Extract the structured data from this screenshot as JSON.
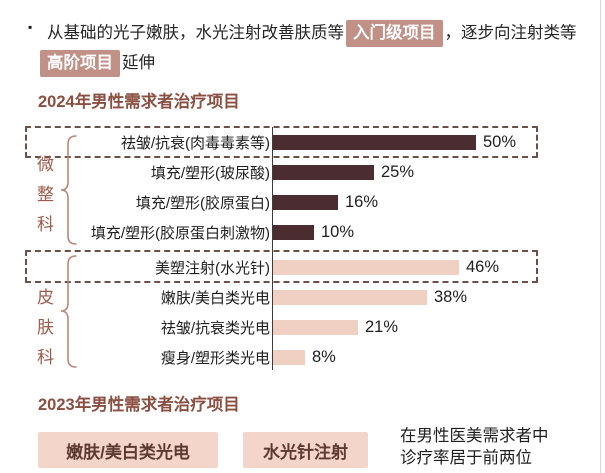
{
  "colors": {
    "dark_bar": "#4a2c31",
    "light_bar": "#f0d0c2",
    "chip_dark_bg": "#c19087",
    "chip_light_bg": "#f3d6c9",
    "title_text": "#8b4f42",
    "group_label_text": "#9e5a4a",
    "brace": "#b5897c",
    "dashed_border": "#6a5049"
  },
  "bullet": {
    "marker_glyph": "▪",
    "line1_pre": "从基础的光子嫩肤，水光注射改善肤质等",
    "chip_entry_level": "入门级项目",
    "line1_post": "，逐步向注射类等",
    "chip_advanced": "高阶项目",
    "line2_post": "延伸"
  },
  "section_2024": {
    "title": "2024年男性需求者治疗项目"
  },
  "section_2023": {
    "title": "2023年男性需求者治疗项目",
    "chips": [
      "嫩肤/美白类光电",
      "水光针注射"
    ],
    "note_line1": "在男性医美需求者中",
    "note_line2": "诊疗率居于前两位"
  },
  "chart_data": {
    "type": "bar",
    "orientation": "horizontal",
    "title": "2024年男性需求者治疗项目",
    "unit": "%",
    "xlim": [
      0,
      55
    ],
    "value_axis_visible": false,
    "grid": false,
    "legend": false,
    "groups": [
      {
        "name": "微整科",
        "row_indexes": [
          0,
          1,
          2,
          3
        ]
      },
      {
        "name": "皮肤科",
        "row_indexes": [
          4,
          5,
          6,
          7
        ]
      }
    ],
    "rows": [
      {
        "group": "微整科",
        "label": "祛皱/抗衰(肉毒毒素等)",
        "value": 50,
        "value_label": "50%",
        "bar_color": "#4a2c31",
        "highlighted": true
      },
      {
        "group": "微整科",
        "label": "填充/塑形(玻尿酸)",
        "value": 25,
        "value_label": "25%",
        "bar_color": "#4a2c31",
        "highlighted": false
      },
      {
        "group": "微整科",
        "label": "填充/塑形(胶原蛋白)",
        "value": 16,
        "value_label": "16%",
        "bar_color": "#4a2c31",
        "highlighted": false
      },
      {
        "group": "微整科",
        "label": "填充/塑形(胶原蛋白刺激物)",
        "value": 10,
        "value_label": "10%",
        "bar_color": "#4a2c31",
        "highlighted": false
      },
      {
        "group": "皮肤科",
        "label": "美塑注射(水光针)",
        "value": 46,
        "value_label": "46%",
        "bar_color": "#f0d0c2",
        "highlighted": true
      },
      {
        "group": "皮肤科",
        "label": "嫩肤/美白类光电",
        "value": 38,
        "value_label": "38%",
        "bar_color": "#f0d0c2",
        "highlighted": false
      },
      {
        "group": "皮肤科",
        "label": "祛皱/抗衰类光电",
        "value": 21,
        "value_label": "21%",
        "bar_color": "#f0d0c2",
        "highlighted": false
      },
      {
        "group": "皮肤科",
        "label": "瘦身/塑形类光电",
        "value": 8,
        "value_label": "8%",
        "bar_color": "#f0d0c2",
        "highlighted": false
      }
    ]
  }
}
